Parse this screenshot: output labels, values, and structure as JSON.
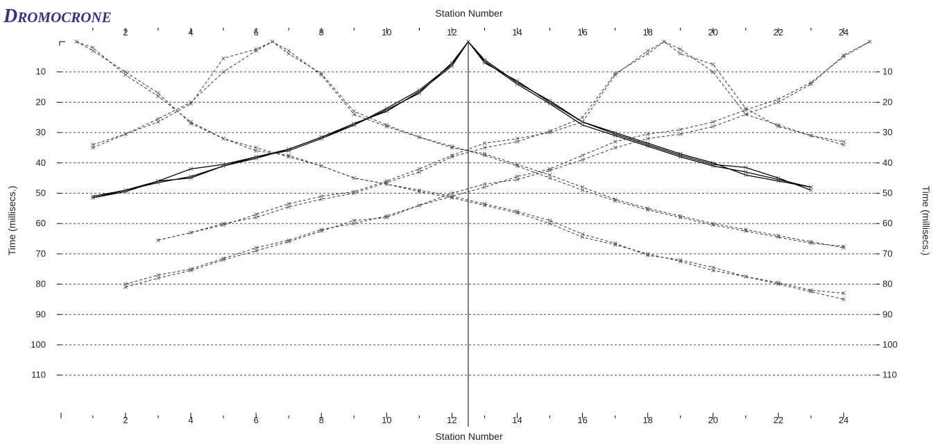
{
  "page_title": {
    "first": "D",
    "rest": "ROMOCRONE"
  },
  "colors": {
    "title": "#3b2c8e",
    "grid": "#444444",
    "shot_line": "#000000",
    "solid_picks": "#000000",
    "dashed_curves": "#333333"
  },
  "chart_data": {
    "type": "line",
    "title": "",
    "xlabel": "Station Number",
    "ylabel": "Time (millisecs.)",
    "x_ticks": [
      2,
      4,
      6,
      8,
      10,
      12,
      14,
      16,
      18,
      20,
      22,
      24
    ],
    "y_ticks": [
      10,
      20,
      30,
      40,
      50,
      60,
      70,
      80,
      90,
      100,
      110
    ],
    "xlim": [
      0.0,
      25.6
    ],
    "ylim": [
      0,
      120
    ],
    "y_inverted": true,
    "grid": "horizontal-dashed",
    "axes": [
      "top",
      "bottom",
      "left",
      "right"
    ],
    "shot_point_x": 12.5,
    "series": [
      {
        "style": "solid",
        "points": [
          [
            1,
            51.5
          ],
          [
            2,
            49
          ],
          [
            3,
            46
          ],
          [
            4,
            42
          ],
          [
            5,
            40.5
          ],
          [
            6,
            38
          ],
          [
            7,
            36
          ],
          [
            8,
            32
          ],
          [
            9,
            27.5
          ],
          [
            10,
            22
          ],
          [
            11,
            16
          ],
          [
            12,
            7.5
          ],
          [
            12.5,
            0
          ],
          [
            13,
            6
          ],
          [
            14,
            13.5
          ],
          [
            15,
            19.5
          ],
          [
            16,
            26.5
          ],
          [
            17,
            30.5
          ],
          [
            18,
            34
          ],
          [
            19,
            37.5
          ],
          [
            20,
            40.5
          ],
          [
            21,
            41.5
          ],
          [
            22,
            45
          ],
          [
            23,
            49
          ]
        ]
      },
      {
        "style": "solid",
        "points": [
          [
            1,
            51
          ],
          [
            2,
            49
          ],
          [
            3,
            46.5
          ],
          [
            4,
            44.5
          ],
          [
            5,
            41
          ],
          [
            6,
            38.5
          ],
          [
            7,
            35.5
          ],
          [
            8,
            31.5
          ],
          [
            9,
            27
          ],
          [
            10,
            23
          ],
          [
            11,
            16.5
          ],
          [
            12,
            8
          ],
          [
            12.5,
            0
          ],
          [
            13,
            6.5
          ],
          [
            14,
            14
          ],
          [
            15,
            20.5
          ],
          [
            16,
            27.5
          ],
          [
            17,
            31
          ],
          [
            18,
            34.5
          ],
          [
            19,
            38
          ],
          [
            20,
            41
          ],
          [
            21,
            43
          ],
          [
            22,
            45.5
          ],
          [
            23,
            48
          ]
        ]
      },
      {
        "style": "solid",
        "points": [
          [
            1,
            51.5
          ],
          [
            2,
            49.5
          ],
          [
            3,
            46
          ],
          [
            4,
            45
          ],
          [
            5,
            41
          ],
          [
            6,
            38
          ],
          [
            7,
            35.5
          ],
          [
            8,
            31.5
          ],
          [
            9,
            27.5
          ],
          [
            10,
            22.5
          ],
          [
            11,
            17
          ],
          [
            12,
            7
          ],
          [
            12.5,
            0
          ],
          [
            13,
            7
          ],
          [
            14,
            13
          ],
          [
            15,
            20
          ],
          [
            16,
            26.5
          ],
          [
            17,
            30
          ],
          [
            18,
            33.5
          ],
          [
            19,
            37
          ],
          [
            20,
            40
          ],
          [
            21,
            44
          ],
          [
            22,
            46
          ],
          [
            23,
            48
          ]
        ]
      },
      {
        "style": "dashed",
        "points": [
          [
            1,
            35
          ],
          [
            2,
            30.5
          ],
          [
            3,
            25.5
          ],
          [
            4,
            20
          ],
          [
            5,
            10
          ],
          [
            6,
            3
          ],
          [
            6.5,
            0
          ],
          [
            7,
            3
          ],
          [
            8,
            11
          ],
          [
            9,
            24
          ],
          [
            10,
            28
          ],
          [
            11,
            31.5
          ],
          [
            12,
            35
          ],
          [
            13,
            37
          ],
          [
            14,
            40.5
          ],
          [
            15,
            44
          ],
          [
            16,
            48
          ],
          [
            17,
            52
          ],
          [
            18,
            55
          ],
          [
            19,
            57.5
          ],
          [
            20,
            60
          ],
          [
            21,
            62
          ],
          [
            22,
            64
          ],
          [
            23,
            66
          ],
          [
            24,
            68
          ]
        ]
      },
      {
        "style": "dashed",
        "points": [
          [
            1,
            34
          ],
          [
            2,
            30.5
          ],
          [
            3,
            26.5
          ],
          [
            4,
            20.5
          ],
          [
            5,
            5.5
          ],
          [
            6,
            2.5
          ],
          [
            6.5,
            0
          ],
          [
            7,
            4
          ],
          [
            8,
            10.5
          ],
          [
            9,
            23
          ],
          [
            10,
            27.5
          ],
          [
            11,
            31.5
          ],
          [
            12,
            34.5
          ],
          [
            13,
            37.5
          ],
          [
            14,
            41
          ],
          [
            15,
            45
          ],
          [
            16,
            49
          ],
          [
            17,
            52.5
          ],
          [
            18,
            55.5
          ],
          [
            19,
            58
          ],
          [
            20,
            60.5
          ],
          [
            21,
            62.5
          ],
          [
            22,
            64.5
          ],
          [
            23,
            66.5
          ],
          [
            24,
            67.5
          ]
        ]
      },
      {
        "style": "dashed",
        "points": [
          [
            0.5,
            0
          ],
          [
            1,
            2
          ],
          [
            2,
            11
          ],
          [
            3,
            18
          ],
          [
            4,
            26.5
          ],
          [
            5,
            32
          ],
          [
            6,
            35
          ],
          [
            7,
            38
          ],
          [
            8,
            41
          ],
          [
            9,
            45
          ],
          [
            10,
            47
          ],
          [
            11,
            49
          ],
          [
            12,
            51
          ],
          [
            13,
            53.5
          ],
          [
            14,
            56
          ],
          [
            15,
            59
          ],
          [
            16,
            63.5
          ],
          [
            17,
            66.5
          ],
          [
            18,
            70.5
          ],
          [
            19,
            72
          ],
          [
            20,
            74.5
          ],
          [
            21,
            77.5
          ],
          [
            22,
            79.5
          ],
          [
            23,
            82
          ],
          [
            24,
            83
          ]
        ]
      },
      {
        "style": "dashed",
        "points": [
          [
            0.5,
            0
          ],
          [
            1,
            3
          ],
          [
            2,
            10
          ],
          [
            3,
            17
          ],
          [
            4,
            27
          ],
          [
            5,
            32
          ],
          [
            6,
            36
          ],
          [
            7,
            37.5
          ],
          [
            8,
            41
          ],
          [
            9,
            45
          ],
          [
            10,
            47
          ],
          [
            11,
            49.5
          ],
          [
            12,
            51.5
          ],
          [
            13,
            54
          ],
          [
            14,
            56.5
          ],
          [
            15,
            60
          ],
          [
            16,
            64.5
          ],
          [
            17,
            67
          ],
          [
            18,
            70
          ],
          [
            19,
            72.5
          ],
          [
            20,
            75.5
          ],
          [
            21,
            77.5
          ],
          [
            22,
            80
          ],
          [
            23,
            82.5
          ],
          [
            24,
            85
          ]
        ]
      },
      {
        "style": "dashed",
        "points": [
          [
            3,
            65.5
          ],
          [
            4,
            63
          ],
          [
            5,
            60.5
          ],
          [
            6,
            57
          ],
          [
            7,
            53.5
          ],
          [
            8,
            51
          ],
          [
            9,
            49.5
          ],
          [
            10,
            46
          ],
          [
            11,
            42
          ],
          [
            12,
            37.5
          ],
          [
            13,
            33.5
          ],
          [
            14,
            32
          ],
          [
            15,
            30
          ],
          [
            16,
            26.5
          ],
          [
            17,
            11
          ],
          [
            18,
            3
          ],
          [
            18.5,
            0
          ],
          [
            19,
            2.5
          ],
          [
            20,
            10
          ],
          [
            21,
            24
          ],
          [
            22,
            27.5
          ],
          [
            23,
            31
          ],
          [
            24,
            33
          ]
        ]
      },
      {
        "style": "dashed",
        "points": [
          [
            3,
            65.5
          ],
          [
            4,
            63
          ],
          [
            5,
            60
          ],
          [
            6,
            58
          ],
          [
            7,
            54.5
          ],
          [
            8,
            52
          ],
          [
            9,
            50
          ],
          [
            10,
            46.5
          ],
          [
            11,
            43
          ],
          [
            12,
            38
          ],
          [
            13,
            35
          ],
          [
            14,
            33
          ],
          [
            15,
            29.5
          ],
          [
            16,
            25
          ],
          [
            17,
            10.5
          ],
          [
            18,
            4
          ],
          [
            18.5,
            0
          ],
          [
            19,
            4
          ],
          [
            20,
            7.5
          ],
          [
            21,
            22
          ],
          [
            22,
            28
          ],
          [
            23,
            31
          ],
          [
            24,
            34
          ]
        ]
      },
      {
        "style": "dashed",
        "points": [
          [
            2,
            81
          ],
          [
            3,
            78
          ],
          [
            4,
            75.5
          ],
          [
            5,
            72
          ],
          [
            6,
            69
          ],
          [
            7,
            66
          ],
          [
            8,
            62.5
          ],
          [
            9,
            59
          ],
          [
            10,
            58
          ],
          [
            11,
            54
          ],
          [
            12,
            50
          ],
          [
            13,
            47
          ],
          [
            14,
            45.5
          ],
          [
            15,
            42.5
          ],
          [
            16,
            39
          ],
          [
            17,
            35
          ],
          [
            18,
            32
          ],
          [
            19,
            30.5
          ],
          [
            20,
            28
          ],
          [
            21,
            24
          ],
          [
            22,
            20
          ],
          [
            23,
            14
          ],
          [
            24,
            4.5
          ],
          [
            24.8,
            0
          ]
        ]
      },
      {
        "style": "dashed",
        "points": [
          [
            2,
            80
          ],
          [
            3,
            77
          ],
          [
            4,
            75
          ],
          [
            5,
            71.5
          ],
          [
            6,
            68
          ],
          [
            7,
            65.5
          ],
          [
            8,
            62
          ],
          [
            9,
            60
          ],
          [
            10,
            57.5
          ],
          [
            11,
            54
          ],
          [
            12,
            51
          ],
          [
            13,
            48
          ],
          [
            14,
            44.5
          ],
          [
            15,
            42
          ],
          [
            16,
            37.5
          ],
          [
            17,
            33
          ],
          [
            18,
            30.5
          ],
          [
            19,
            29
          ],
          [
            20,
            26.5
          ],
          [
            21,
            22.5
          ],
          [
            22,
            19
          ],
          [
            23,
            13.5
          ],
          [
            24,
            5
          ],
          [
            24.8,
            0
          ]
        ]
      }
    ]
  }
}
